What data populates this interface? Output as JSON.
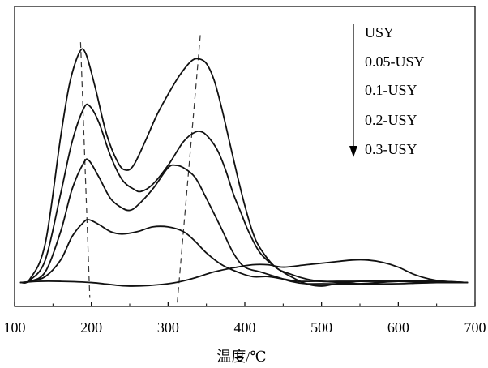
{
  "chart_data": {
    "type": "line",
    "title": "",
    "xlabel": "温度/℃",
    "ylabel": "",
    "xlim": [
      100,
      700
    ],
    "xticks": [
      100,
      200,
      300,
      400,
      500,
      600,
      700
    ],
    "xtick_labels": [
      "100",
      "200",
      "300",
      "400",
      "500",
      "600",
      "700"
    ],
    "ylim": [
      0,
      1
    ],
    "grid": false,
    "legend": {
      "placement": "top-right",
      "entries": [
        "USY",
        "0.05-USY",
        "0.1-USY",
        "0.2-USY",
        "0.3-USY"
      ],
      "arrow": "down"
    },
    "line_color": "#111111",
    "guide_color": "#333333",
    "series": [
      {
        "name": "USY",
        "x": [
          108,
          120,
          140,
          160,
          172,
          185,
          193,
          205,
          220,
          235,
          245,
          255,
          270,
          285,
          300,
          315,
          330,
          340,
          350,
          360,
          370,
          380,
          390,
          400,
          410,
          420,
          440,
          460,
          480,
          500,
          520,
          550,
          600,
          650,
          690
        ],
        "y": [
          0.005,
          0.02,
          0.17,
          0.62,
          0.85,
          0.98,
          0.97,
          0.83,
          0.63,
          0.51,
          0.48,
          0.5,
          0.6,
          0.71,
          0.8,
          0.88,
          0.94,
          0.95,
          0.93,
          0.86,
          0.74,
          0.6,
          0.46,
          0.33,
          0.22,
          0.15,
          0.07,
          0.04,
          0.02,
          0.01,
          0.01,
          0.01,
          0.01,
          0.005,
          0.005
        ]
      },
      {
        "name": "0.05-USY",
        "x": [
          108,
          120,
          140,
          160,
          175,
          190,
          198,
          210,
          225,
          240,
          255,
          265,
          280,
          300,
          320,
          335,
          345,
          355,
          365,
          375,
          385,
          395,
          405,
          420,
          440,
          460,
          480,
          500,
          520,
          550,
          600,
          650,
          690
        ],
        "y": [
          0.005,
          0.015,
          0.1,
          0.38,
          0.6,
          0.74,
          0.75,
          0.68,
          0.54,
          0.44,
          0.4,
          0.39,
          0.42,
          0.5,
          0.6,
          0.64,
          0.64,
          0.61,
          0.56,
          0.48,
          0.38,
          0.3,
          0.22,
          0.13,
          0.07,
          0.03,
          0.0,
          -0.01,
          0.0,
          0.01,
          0.01,
          0.01,
          0.005
        ]
      },
      {
        "name": "0.1-USY",
        "x": [
          108,
          120,
          140,
          160,
          175,
          190,
          197,
          210,
          225,
          240,
          250,
          260,
          280,
          300,
          310,
          320,
          335,
          350,
          370,
          385,
          400,
          420,
          440,
          460,
          480,
          500,
          550,
          600,
          650,
          690
        ],
        "y": [
          0.005,
          0.01,
          0.05,
          0.22,
          0.4,
          0.51,
          0.52,
          0.45,
          0.36,
          0.32,
          0.31,
          0.33,
          0.4,
          0.49,
          0.5,
          0.49,
          0.45,
          0.36,
          0.23,
          0.13,
          0.07,
          0.05,
          0.03,
          0.01,
          0.0,
          0.0,
          0.0,
          0.01,
          0.01,
          0.005
        ]
      },
      {
        "name": "0.2-USY",
        "x": [
          108,
          120,
          140,
          160,
          175,
          190,
          197,
          210,
          225,
          240,
          260,
          280,
          300,
          320,
          335,
          350,
          370,
          390,
          410,
          430,
          450,
          470,
          500,
          550,
          600,
          650,
          690
        ],
        "y": [
          0.005,
          0.01,
          0.03,
          0.1,
          0.2,
          0.26,
          0.27,
          0.25,
          0.22,
          0.21,
          0.22,
          0.24,
          0.24,
          0.22,
          0.18,
          0.13,
          0.08,
          0.05,
          0.03,
          0.03,
          0.02,
          0.01,
          0.01,
          0.0,
          0.0,
          0.005,
          0.005
        ]
      },
      {
        "name": "0.3-USY",
        "x": [
          108,
          130,
          160,
          200,
          250,
          300,
          330,
          360,
          390,
          410,
          430,
          450,
          480,
          510,
          540,
          560,
          580,
          600,
          620,
          640,
          660,
          690
        ],
        "y": [
          0.005,
          0.01,
          0.01,
          0.005,
          -0.01,
          0.0,
          0.02,
          0.05,
          0.07,
          0.08,
          0.08,
          0.07,
          0.08,
          0.09,
          0.1,
          0.1,
          0.09,
          0.07,
          0.04,
          0.02,
          0.01,
          0.005
        ]
      }
    ],
    "guide_lines": [
      {
        "x_start": 186,
        "y_start": 1.02,
        "x_end": 198,
        "y_end": -0.06
      },
      {
        "x_start": 342,
        "y_start": 1.05,
        "x_end": 312,
        "y_end": -0.08
      }
    ]
  }
}
